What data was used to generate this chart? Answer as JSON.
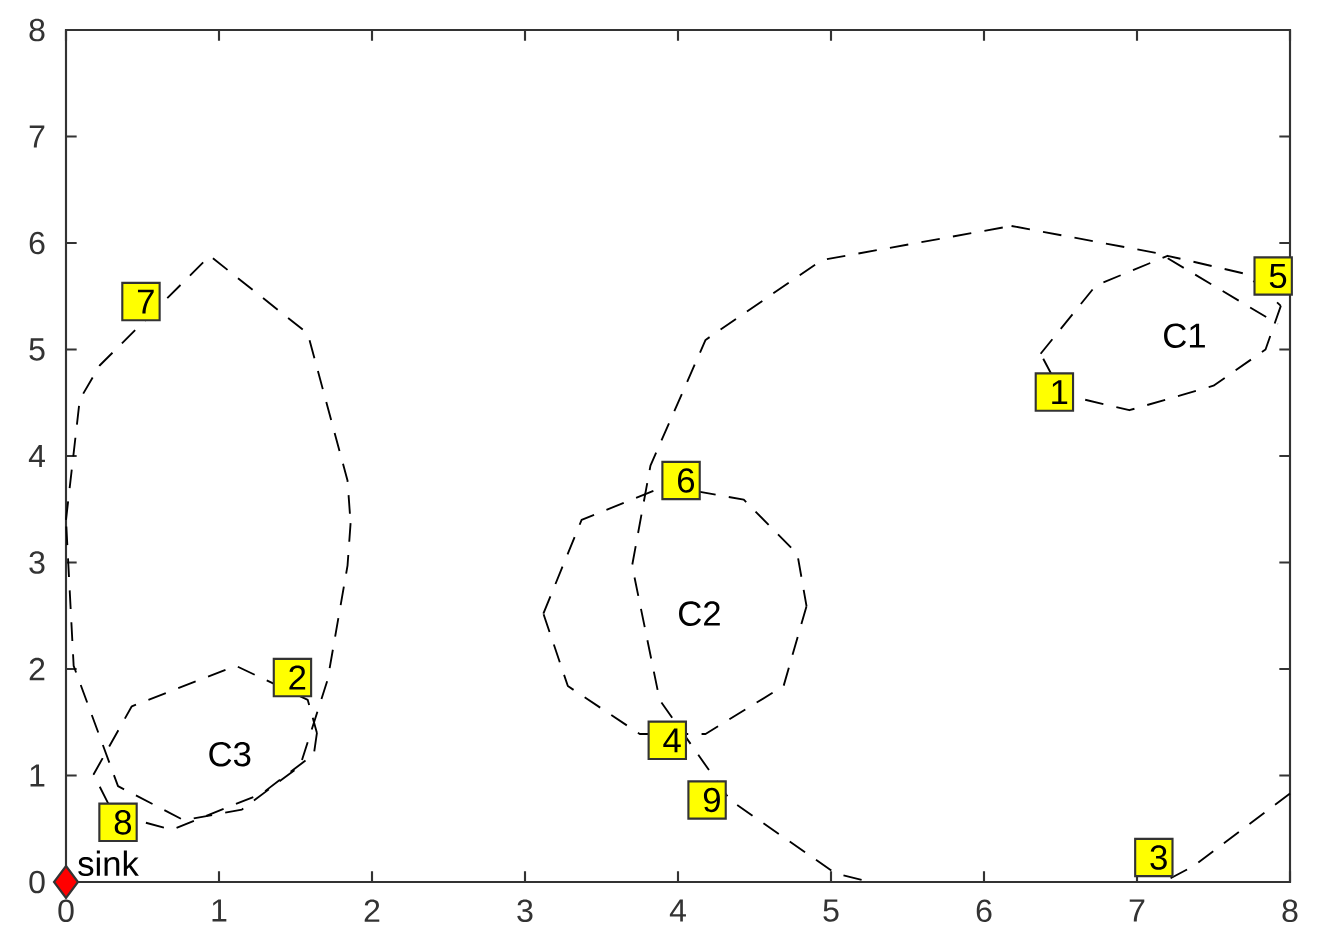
{
  "chart_data": {
    "type": "line",
    "xlim": [
      0,
      8
    ],
    "ylim": [
      0,
      8
    ],
    "xticks": [
      0,
      1,
      2,
      3,
      4,
      5,
      6,
      7,
      8
    ],
    "yticks": [
      0,
      1,
      2,
      3,
      4,
      5,
      6,
      7,
      8
    ],
    "grid": false,
    "series": [
      {
        "line_style": "dashed",
        "marker": "none",
        "color": "#000000",
        "x": [
          6.18,
          7.15,
          7.92,
          null,
          8.0,
          7.37,
          7.2,
          null,
          5.2,
          5.03,
          4.34,
          3.88,
          3.7,
          3.82,
          4.18,
          4.94,
          6.18
        ],
        "values": [
          6.16,
          5.9,
          5.24,
          null,
          0.83,
          0.15,
          0.02,
          null,
          0.02,
          0.08,
          0.77,
          1.71,
          2.97,
          3.91,
          5.09,
          5.84,
          6.16
        ]
      },
      {
        "line_style": "dashed",
        "marker": "none",
        "color": "#000000",
        "x": [
          6.37,
          6.73,
          7.2,
          7.71,
          7.94,
          null,
          7.94,
          7.84,
          7.5,
          6.95,
          6.51,
          6.37
        ],
        "values": [
          4.96,
          5.6,
          5.88,
          5.71,
          5.41,
          null,
          5.41,
          5.0,
          4.66,
          4.43,
          4.58,
          4.96
        ]
      },
      {
        "line_style": "dashed",
        "marker": "none",
        "color": "#000000",
        "x": [
          3.12,
          3.37,
          3.92,
          4.43,
          4.78,
          4.84,
          null,
          4.84,
          4.69,
          4.18,
          3.75,
          3.28,
          3.12
        ],
        "values": [
          2.52,
          3.4,
          3.72,
          3.59,
          3.08,
          2.59,
          null,
          2.59,
          1.84,
          1.39,
          1.39,
          1.84,
          2.52
        ]
      },
      {
        "line_style": "dashed",
        "marker": "none",
        "color": "#000000",
        "x": [
          0.0,
          0.09,
          0.22,
          0.94,
          1.58,
          1.84,
          1.86,
          null,
          1.86,
          1.84,
          1.71,
          1.53,
          1.15,
          0.77,
          0.34,
          0.05,
          0.0
        ],
        "values": [
          3.4,
          4.53,
          4.85,
          5.88,
          5.15,
          3.77,
          3.37,
          null,
          3.37,
          2.97,
          1.9,
          1.09,
          0.68,
          0.58,
          0.9,
          2.03,
          3.4
        ]
      },
      {
        "line_style": "dashed",
        "marker": "none",
        "color": "#000000",
        "x": [
          0.18,
          0.43,
          1.11,
          1.58,
          1.64,
          null,
          1.64,
          1.62,
          1.28,
          0.69,
          0.31,
          0.18
        ],
        "values": [
          1.01,
          1.65,
          2.03,
          1.71,
          1.4,
          null,
          1.4,
          1.2,
          0.83,
          0.49,
          0.64,
          1.01
        ]
      },
      {
        "type": "scatter",
        "marker": "square",
        "color": "#ffff00",
        "x": [
          6.46,
          1.48,
          7.11,
          3.93,
          7.89,
          4.02,
          0.49,
          0.34,
          4.19
        ],
        "values": [
          4.6,
          1.92,
          0.23,
          1.33,
          5.69,
          3.77,
          5.45,
          0.56,
          0.77
        ]
      },
      {
        "type": "scatter",
        "marker": "diamond",
        "color": "#ff0000",
        "x": [
          0
        ],
        "values": [
          0
        ]
      }
    ],
    "annotations": [
      {
        "text": "1",
        "x": 6.46,
        "y": 4.6
      },
      {
        "text": "2",
        "x": 1.48,
        "y": 1.92
      },
      {
        "text": "3",
        "x": 7.11,
        "y": 0.23
      },
      {
        "text": "4",
        "x": 3.93,
        "y": 1.33
      },
      {
        "text": "5",
        "x": 7.89,
        "y": 5.69
      },
      {
        "text": "6",
        "x": 4.02,
        "y": 3.77
      },
      {
        "text": "7",
        "x": 0.49,
        "y": 5.45
      },
      {
        "text": "8",
        "x": 0.34,
        "y": 0.56
      },
      {
        "text": "9",
        "x": 4.19,
        "y": 0.77
      },
      {
        "text": "sink",
        "x": 0,
        "y": 0
      },
      "C1",
      "C2",
      "C3"
    ]
  }
}
